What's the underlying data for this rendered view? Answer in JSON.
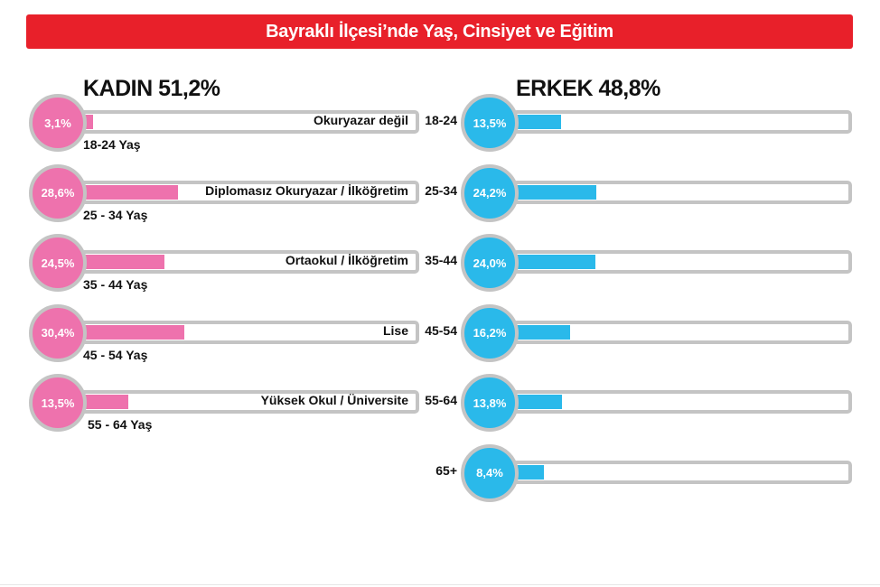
{
  "title": "Bayraklı İlçesi’nde Yaş, Cinsiyet ve Eğitim",
  "colors": {
    "title_bg": "#e8202a",
    "female": "#ee72ad",
    "male": "#2ab9ea",
    "track_border": "#c4c4c4"
  },
  "female": {
    "header": "KADIN 51,2%",
    "rows": [
      {
        "pct_label": "3,1%",
        "value": 3.1,
        "education": "Okuryazar değil",
        "age": "18-24 Yaş"
      },
      {
        "pct_label": "28,6%",
        "value": 28.6,
        "education": "Diplomasız Okuryazar / İlköğretim",
        "age": "25 - 34 Yaş"
      },
      {
        "pct_label": "24,5%",
        "value": 24.5,
        "education": "Ortaokul / İlköğretim",
        "age": "35 - 44 Yaş"
      },
      {
        "pct_label": "30,4%",
        "value": 30.4,
        "education": "Lise",
        "age": "45 - 54 Yaş"
      },
      {
        "pct_label": "13,5%",
        "value": 13.5,
        "education": "Yüksek Okul / Üniversite",
        "age": "55 - 64 Yaş"
      }
    ]
  },
  "male": {
    "header": "ERKEK 48,8%",
    "rows": [
      {
        "age": "18-24",
        "pct_label": "13,5%",
        "value": 13.5
      },
      {
        "age": "25-34",
        "pct_label": "24,2%",
        "value": 24.2
      },
      {
        "age": "35-44",
        "pct_label": "24,0%",
        "value": 24.0
      },
      {
        "age": "45-54",
        "pct_label": "16,2%",
        "value": 16.2
      },
      {
        "age": "55-64",
        "pct_label": "13,8%",
        "value": 13.8
      },
      {
        "age": "65+",
        "pct_label": "8,4%",
        "value": 8.4
      }
    ]
  },
  "chart_data": [
    {
      "type": "bar",
      "title": "KADIN 51,2%",
      "categories": [
        "Okuryazar değil",
        "Diplomasız Okuryazar / İlköğretim",
        "Ortaokul / İlköğretim",
        "Lise",
        "Yüksek Okul / Üniversite"
      ],
      "values": [
        3.1,
        28.6,
        24.5,
        30.4,
        13.5
      ]
    },
    {
      "type": "bar",
      "title": "ERKEK 48,8%",
      "categories": [
        "18-24",
        "25-34",
        "35-44",
        "45-54",
        "55-64",
        "65+"
      ],
      "values": [
        13.5,
        24.2,
        24.0,
        16.2,
        13.8,
        8.4
      ]
    }
  ]
}
